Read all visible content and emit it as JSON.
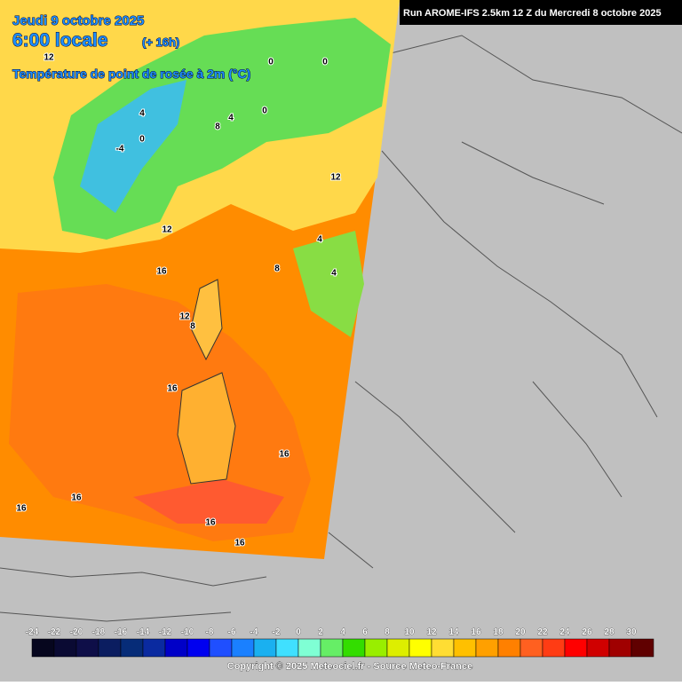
{
  "header": {
    "date": "Jeudi 9 octobre 2025",
    "time": "6:00 locale",
    "lead": "(+ 16h)",
    "field": "Température de point de rosée à 2m (°C)",
    "run": "Run AROME-IFS 2.5km 12 Z du Mercredi 8 octobre 2025"
  },
  "contour_labels": [
    "12",
    "0",
    "0",
    "4",
    "0",
    "-4",
    "4",
    "8",
    "0",
    "12",
    "12",
    "8",
    "4",
    "4",
    "16",
    "12",
    "8",
    "16",
    "16",
    "16",
    "16",
    "16",
    "16"
  ],
  "colorbar": {
    "labels": [
      "-24",
      "-22",
      "-20",
      "-18",
      "-16",
      "-14",
      "-12",
      "-10",
      "-8",
      "-6",
      "-4",
      "-2",
      "0",
      "2",
      "4",
      "6",
      "8",
      "10",
      "12",
      "14",
      "16",
      "18",
      "20",
      "22",
      "24",
      "26",
      "28",
      "30"
    ],
    "colors": [
      "#06061e",
      "#0a0a33",
      "#0e0e48",
      "#0b1d60",
      "#062c78",
      "#0a2aa0",
      "#0000c8",
      "#0000f0",
      "#1f4fff",
      "#1a80ff",
      "#1ab0f0",
      "#40e0ff",
      "#7fffd4",
      "#66ee66",
      "#33dd00",
      "#99ee00",
      "#ddee00",
      "#ffff00",
      "#ffdd33",
      "#ffc000",
      "#ffa000",
      "#ff8000",
      "#ff6020",
      "#ff3c14",
      "#ff0000",
      "#d00000",
      "#a00000",
      "#600000"
    ]
  },
  "footer": "Copyright © 2025 Meteociel.fr - Source Meteo-France"
}
